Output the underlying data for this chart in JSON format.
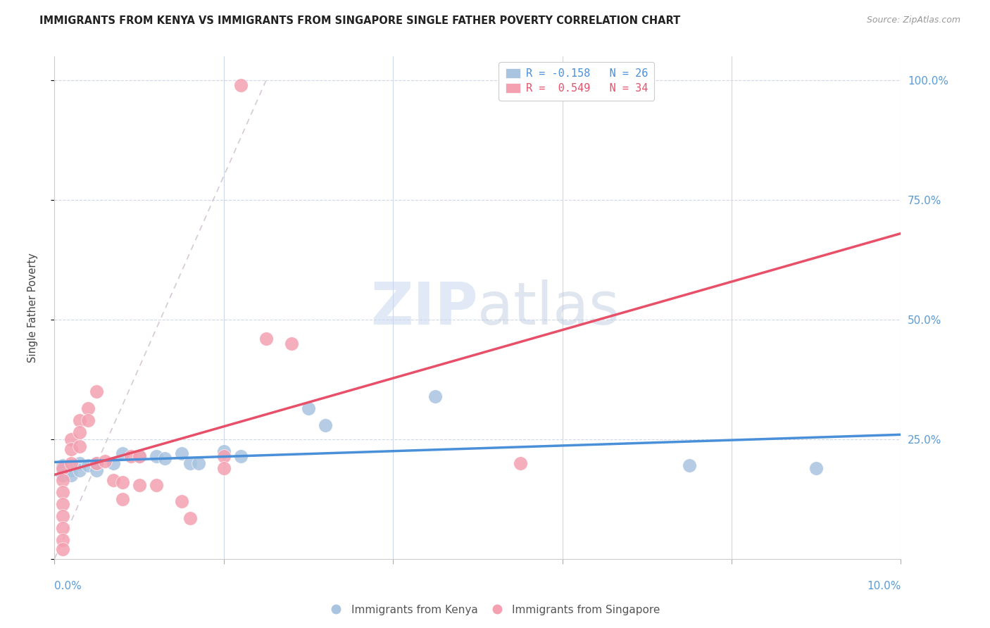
{
  "title": "IMMIGRANTS FROM KENYA VS IMMIGRANTS FROM SINGAPORE SINGLE FATHER POVERTY CORRELATION CHART",
  "source": "Source: ZipAtlas.com",
  "ylabel": "Single Father Poverty",
  "watermark": "ZIPatlas",
  "legend_kenya_r": "R = -0.158",
  "legend_kenya_n": "N = 26",
  "legend_singapore_r": "R =  0.549",
  "legend_singapore_n": "N = 34",
  "kenya_color": "#a8c4e0",
  "singapore_color": "#f4a0b0",
  "kenya_line_color": "#4a90d9",
  "singapore_line_color": "#e8506a",
  "kenya_scatter": [
    [
      0.001,
      0.195
    ],
    [
      0.001,
      0.185
    ],
    [
      0.001,
      0.175
    ],
    [
      0.002,
      0.195
    ],
    [
      0.002,
      0.185
    ],
    [
      0.002,
      0.175
    ],
    [
      0.003,
      0.2
    ],
    [
      0.003,
      0.185
    ],
    [
      0.004,
      0.195
    ],
    [
      0.005,
      0.185
    ],
    [
      0.005,
      0.2
    ],
    [
      0.007,
      0.2
    ],
    [
      0.008,
      0.22
    ],
    [
      0.01,
      0.215
    ],
    [
      0.012,
      0.215
    ],
    [
      0.013,
      0.21
    ],
    [
      0.015,
      0.22
    ],
    [
      0.016,
      0.2
    ],
    [
      0.017,
      0.2
    ],
    [
      0.02,
      0.225
    ],
    [
      0.022,
      0.215
    ],
    [
      0.03,
      0.315
    ],
    [
      0.032,
      0.28
    ],
    [
      0.045,
      0.34
    ],
    [
      0.075,
      0.195
    ],
    [
      0.09,
      0.19
    ]
  ],
  "singapore_scatter": [
    [
      0.001,
      0.19
    ],
    [
      0.001,
      0.165
    ],
    [
      0.001,
      0.14
    ],
    [
      0.001,
      0.115
    ],
    [
      0.001,
      0.09
    ],
    [
      0.001,
      0.065
    ],
    [
      0.001,
      0.04
    ],
    [
      0.001,
      0.02
    ],
    [
      0.002,
      0.25
    ],
    [
      0.002,
      0.23
    ],
    [
      0.002,
      0.2
    ],
    [
      0.003,
      0.29
    ],
    [
      0.003,
      0.265
    ],
    [
      0.003,
      0.235
    ],
    [
      0.004,
      0.315
    ],
    [
      0.004,
      0.29
    ],
    [
      0.005,
      0.35
    ],
    [
      0.005,
      0.2
    ],
    [
      0.006,
      0.205
    ],
    [
      0.007,
      0.165
    ],
    [
      0.008,
      0.16
    ],
    [
      0.008,
      0.125
    ],
    [
      0.009,
      0.215
    ],
    [
      0.01,
      0.215
    ],
    [
      0.01,
      0.155
    ],
    [
      0.012,
      0.155
    ],
    [
      0.015,
      0.12
    ],
    [
      0.016,
      0.085
    ],
    [
      0.02,
      0.215
    ],
    [
      0.02,
      0.19
    ],
    [
      0.022,
      0.99
    ],
    [
      0.025,
      0.46
    ],
    [
      0.028,
      0.45
    ],
    [
      0.055,
      0.2
    ]
  ],
  "xlim": [
    0.0,
    0.1
  ],
  "ylim": [
    0.0,
    1.05
  ]
}
